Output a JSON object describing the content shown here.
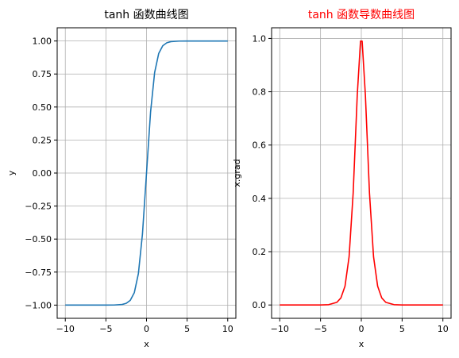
{
  "chart_data": [
    {
      "type": "line",
      "title": "tanh 函数曲线图",
      "title_color": "#000000",
      "xlabel": "x",
      "ylabel": "y",
      "xlim": [
        -11,
        11
      ],
      "ylim": [
        -1.1,
        1.1
      ],
      "grid": true,
      "xticks": [
        -10,
        -5,
        0,
        5,
        10
      ],
      "xtick_labels": [
        "−10",
        "−5",
        "0",
        "5",
        "10"
      ],
      "yticks": [
        -1.0,
        -0.75,
        -0.5,
        -0.25,
        0.0,
        0.25,
        0.5,
        0.75,
        1.0
      ],
      "ytick_labels": [
        "−1.00",
        "−0.75",
        "−0.50",
        "−0.25",
        "0.00",
        "0.25",
        "0.50",
        "0.75",
        "1.00"
      ],
      "series": [
        {
          "color": "#1f77b4",
          "x": [
            -10,
            -5,
            -4,
            -3,
            -2.5,
            -2,
            -1.5,
            -1,
            -0.5,
            0,
            0.5,
            1,
            1.5,
            2,
            2.5,
            3,
            4,
            5,
            10
          ],
          "y": [
            -1.0,
            -0.9999,
            -0.9993,
            -0.9951,
            -0.9866,
            -0.964,
            -0.9051,
            -0.7616,
            -0.4621,
            0.0,
            0.4621,
            0.7616,
            0.9051,
            0.964,
            0.9866,
            0.9951,
            0.9993,
            0.9999,
            1.0
          ]
        }
      ]
    },
    {
      "type": "line",
      "title": "tanh 函数导数曲线图",
      "title_color": "#ff0000",
      "xlabel": "x",
      "ylabel": "x.grad",
      "xlim": [
        -11,
        11
      ],
      "ylim": [
        -0.05,
        1.04
      ],
      "grid": true,
      "xticks": [
        -10,
        -5,
        0,
        5,
        10
      ],
      "xtick_labels": [
        "−10",
        "−5",
        "0",
        "5",
        "10"
      ],
      "yticks": [
        0.0,
        0.2,
        0.4,
        0.6,
        0.8,
        1.0
      ],
      "ytick_labels": [
        "0.0",
        "0.2",
        "0.4",
        "0.6",
        "0.8",
        "1.0"
      ],
      "series": [
        {
          "color": "#ff0000",
          "x": [
            -10,
            -5,
            -4,
            -3,
            -2.5,
            -2,
            -1.5,
            -1,
            -0.5,
            -0.1,
            0.1,
            0.5,
            1,
            1.5,
            2,
            2.5,
            3,
            4,
            5,
            10
          ],
          "y": [
            0.0,
            0.0002,
            0.0013,
            0.0099,
            0.0266,
            0.0707,
            0.1807,
            0.42,
            0.7864,
            0.99,
            0.99,
            0.7864,
            0.42,
            0.1807,
            0.0707,
            0.0266,
            0.0099,
            0.0013,
            0.0002,
            0.0
          ]
        }
      ]
    }
  ]
}
